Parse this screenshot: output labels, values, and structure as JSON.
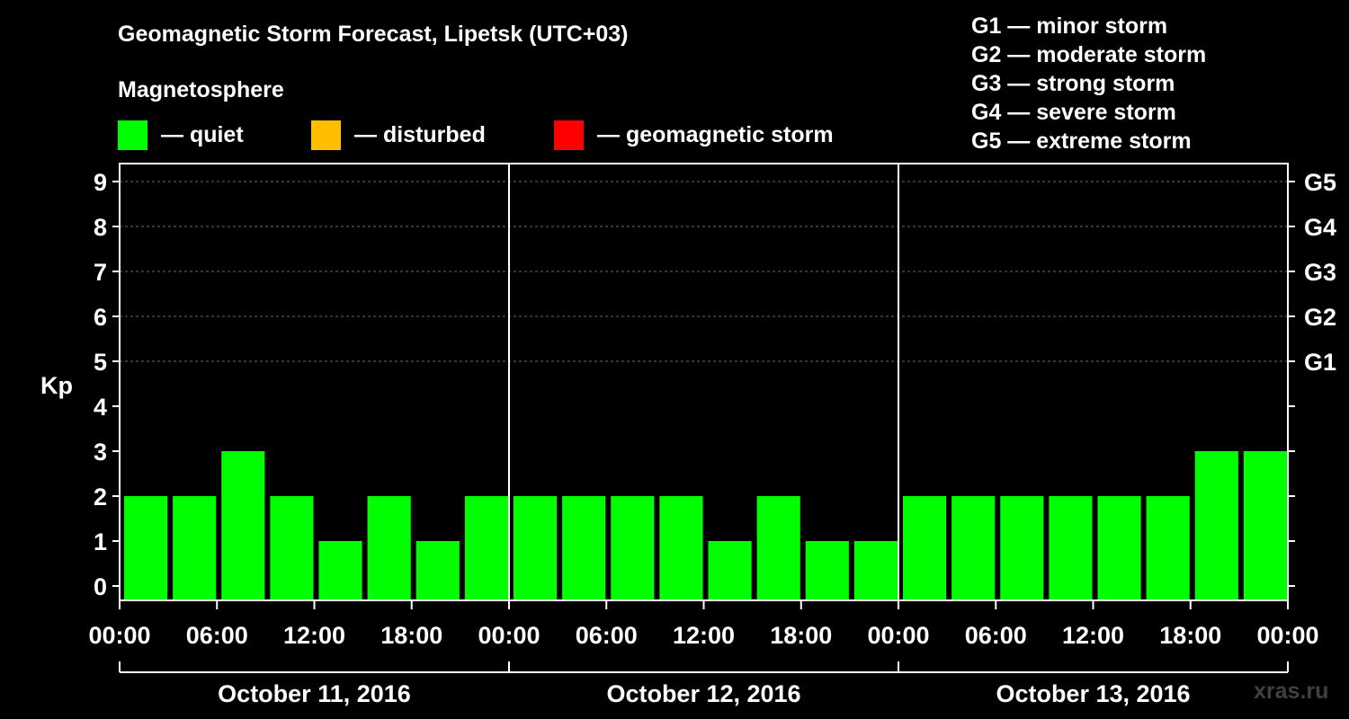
{
  "title": "Geomagnetic Storm Forecast, Lipetsk (UTC+03)",
  "magnetosphere": {
    "title": "Magnetosphere",
    "items": [
      {
        "label": "— quiet",
        "color": "#00ff00"
      },
      {
        "label": "— disturbed",
        "color": "#ffbf00"
      },
      {
        "label": "— geomagnetic storm",
        "color": "#ff0000"
      }
    ]
  },
  "storm_scale": [
    "G1 — minor storm",
    "G2 — moderate storm",
    "G3 — strong storm",
    "G4 — severe storm",
    "G5 — extreme storm"
  ],
  "watermark": "xras.ru",
  "chart_data": {
    "type": "bar",
    "ylabel": "Kp",
    "ylim": [
      0,
      9
    ],
    "grid": true,
    "y_ticks": [
      "0",
      "1",
      "2",
      "3",
      "4",
      "5",
      "6",
      "7",
      "8",
      "9"
    ],
    "right_tick_labels": [
      {
        "value": 5,
        "label": "G1"
      },
      {
        "value": 6,
        "label": "G2"
      },
      {
        "value": 7,
        "label": "G3"
      },
      {
        "value": 8,
        "label": "G4"
      },
      {
        "value": 9,
        "label": "G5"
      }
    ],
    "x_tick_labels": [
      "00:00",
      "06:00",
      "12:00",
      "18:00",
      "00:00",
      "06:00",
      "12:00",
      "18:00",
      "00:00",
      "06:00",
      "12:00",
      "18:00",
      "00:00"
    ],
    "days": [
      "October 11, 2016",
      "October 12, 2016",
      "October 13, 2016"
    ],
    "categories": [
      "00:00",
      "03:00",
      "06:00",
      "09:00",
      "12:00",
      "15:00",
      "18:00",
      "21:00",
      "00:00",
      "03:00",
      "06:00",
      "09:00",
      "12:00",
      "15:00",
      "18:00",
      "21:00",
      "00:00",
      "03:00",
      "06:00",
      "09:00",
      "12:00",
      "15:00",
      "18:00",
      "21:00"
    ],
    "values": [
      2,
      2,
      3,
      2,
      1,
      2,
      1,
      2,
      2,
      2,
      2,
      2,
      1,
      2,
      1,
      1,
      2,
      2,
      2,
      2,
      2,
      2,
      3,
      3
    ],
    "bar_color": "#00ff00"
  }
}
